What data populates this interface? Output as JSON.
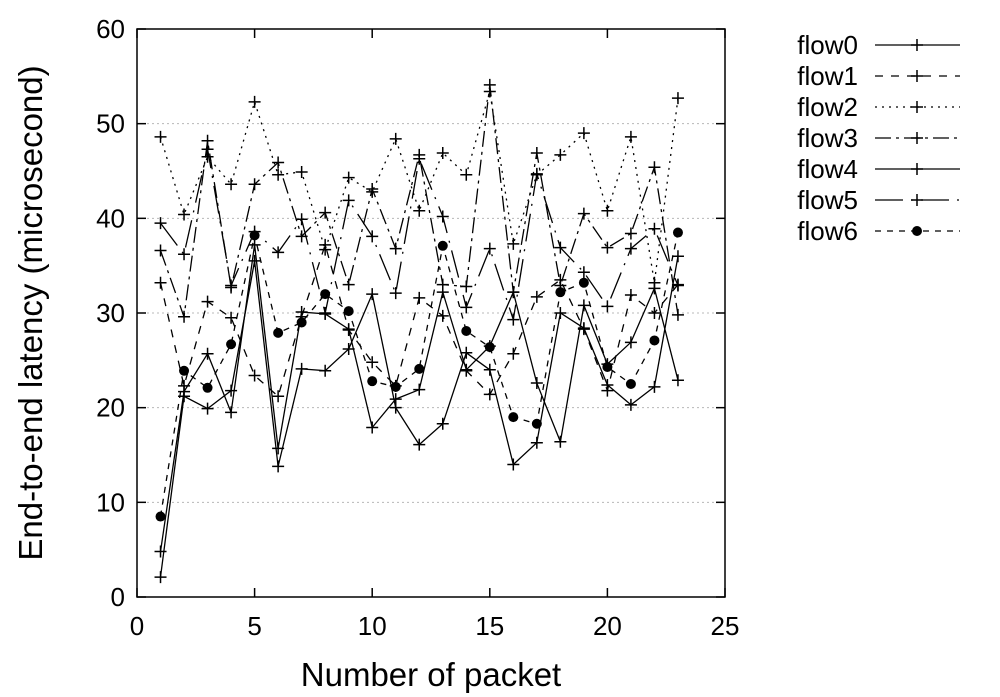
{
  "chart_data": {
    "type": "line",
    "xlabel": "Number of packet",
    "ylabel": "End-to-end latency (microsecond)",
    "xlim": [
      0,
      25
    ],
    "ylim": [
      0,
      60
    ],
    "x_ticks": [
      0,
      5,
      10,
      15,
      20,
      25
    ],
    "y_ticks": [
      0,
      10,
      20,
      30,
      40,
      50,
      60
    ],
    "x_tick_labels": [
      "0",
      "5",
      "10",
      "15",
      "20",
      "25"
    ],
    "y_tick_labels": [
      "0",
      "10",
      "20",
      "30",
      "40",
      "50",
      "60"
    ],
    "grid": "horizontal dotted",
    "legend_position": "outside-right",
    "x": [
      1,
      2,
      3,
      4,
      5,
      6,
      7,
      8,
      9,
      10,
      11,
      12,
      13,
      14,
      15,
      16,
      17,
      18,
      19,
      20,
      21,
      22,
      23
    ],
    "series": [
      {
        "name": "flow0",
        "dash": "solid",
        "marker": "plus",
        "values": [
          2.1,
          21.2,
          19.9,
          21.8,
          35.5,
          13.8,
          24.1,
          23.9,
          26.2,
          32.0,
          20.0,
          16.1,
          18.3,
          25.8,
          24.0,
          14.0,
          16.3,
          30.0,
          28.4,
          22.4,
          20.3,
          22.2,
          36.0
        ]
      },
      {
        "name": "flow1",
        "dash": "8,8",
        "marker": "plus",
        "values": [
          33.2,
          22.3,
          31.2,
          29.5,
          23.4,
          21.2,
          29.6,
          37.2,
          28.2,
          24.8,
          22.3,
          31.6,
          29.7,
          23.9,
          21.4,
          25.7,
          31.7,
          33.5,
          28.3,
          21.8,
          31.9,
          30.0,
          33.0
        ]
      },
      {
        "name": "flow2",
        "dash": "2,5",
        "marker": "plus",
        "values": [
          48.6,
          40.4,
          46.5,
          43.6,
          52.3,
          44.6,
          44.9,
          36.7,
          44.3,
          42.8,
          48.4,
          40.8,
          46.9,
          44.6,
          53.4,
          37.3,
          44.6,
          46.7,
          49.0,
          40.8,
          48.6,
          33.2,
          52.7
        ]
      },
      {
        "name": "flow3",
        "dash": "16,5,3,5",
        "marker": "plus",
        "values": [
          36.6,
          29.6,
          48.2,
          32.7,
          43.6,
          45.9,
          38.1,
          40.6,
          33.0,
          43.1,
          36.8,
          46.7,
          33.0,
          32.8,
          54.1,
          32.2,
          46.9,
          32.9,
          40.5,
          36.9,
          38.4,
          45.4,
          29.8
        ]
      },
      {
        "name": "flow4",
        "dash": "solid",
        "marker": "plus",
        "values": [
          4.8,
          21.7,
          25.7,
          19.5,
          37.2,
          15.7,
          30.1,
          29.9,
          28.3,
          17.9,
          20.9,
          21.9,
          32.2,
          24.0,
          26.5,
          32.2,
          22.6,
          16.4,
          30.8,
          24.6,
          26.9,
          32.6,
          22.9
        ]
      },
      {
        "name": "flow5",
        "dash": "28,8,2,8",
        "marker": "plus",
        "values": [
          39.5,
          36.2,
          47.3,
          32.9,
          38.6,
          36.4,
          39.9,
          30.0,
          41.9,
          38.1,
          32.1,
          46.3,
          40.2,
          30.6,
          36.8,
          29.3,
          44.7,
          36.9,
          34.3,
          30.7,
          36.8,
          38.9,
          32.9
        ]
      },
      {
        "name": "flow6",
        "dash": "6,6",
        "marker": "dot",
        "values": [
          8.5,
          23.9,
          22.1,
          26.7,
          38.2,
          27.9,
          29.0,
          32.0,
          30.2,
          22.8,
          22.2,
          24.1,
          37.1,
          28.1,
          26.4,
          19.0,
          18.3,
          32.2,
          33.2,
          24.3,
          22.5,
          27.1,
          38.5
        ]
      }
    ]
  }
}
